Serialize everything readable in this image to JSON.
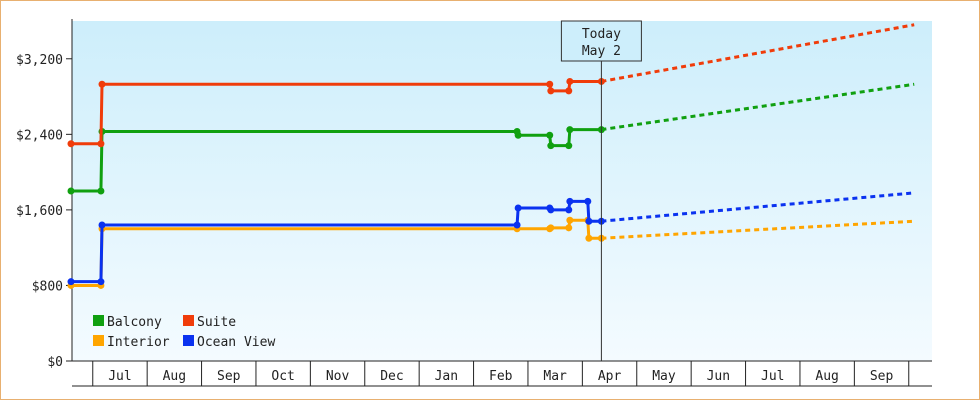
{
  "chart_data": {
    "type": "line",
    "title": "",
    "xlabel": "",
    "ylabel": "",
    "ylim": [
      0,
      3600
    ],
    "y_ticks": [
      0,
      800,
      1600,
      2400,
      3200
    ],
    "y_tick_labels": [
      "$0",
      "$800",
      "$1,600",
      "$2,400",
      "$3,200"
    ],
    "x_months": [
      "Jul",
      "Aug",
      "Sep",
      "Oct",
      "Nov",
      "Dec",
      "Jan",
      "Feb",
      "Mar",
      "Apr",
      "May",
      "Jun",
      "Jul",
      "Aug",
      "Sep"
    ],
    "today_label": [
      "Today",
      "May 2"
    ],
    "legend_position": "bottom-left",
    "grid": false,
    "series": [
      {
        "name": "Balcony",
        "color": "#10a010",
        "values": [
          [
            0.0,
            1800
          ],
          [
            0.55,
            1800
          ],
          [
            0.57,
            2430
          ],
          [
            8.2,
            2430
          ],
          [
            8.22,
            2390
          ],
          [
            8.8,
            2390
          ],
          [
            8.82,
            2280
          ],
          [
            9.15,
            2280
          ],
          [
            9.17,
            2450
          ],
          [
            9.75,
            2450
          ]
        ],
        "projection": [
          [
            9.75,
            2450
          ],
          [
            15.5,
            2930
          ]
        ]
      },
      {
        "name": "Suite",
        "color": "#f03c0a",
        "values": [
          [
            0.0,
            2300
          ],
          [
            0.55,
            2300
          ],
          [
            0.57,
            2930
          ],
          [
            8.8,
            2930
          ],
          [
            8.82,
            2860
          ],
          [
            9.15,
            2860
          ],
          [
            9.17,
            2960
          ],
          [
            9.75,
            2960
          ]
        ],
        "projection": [
          [
            9.75,
            2960
          ],
          [
            15.5,
            3560
          ]
        ]
      },
      {
        "name": "Interior",
        "color": "#ffa500",
        "values": [
          [
            0.0,
            800
          ],
          [
            0.55,
            800
          ],
          [
            0.57,
            1400
          ],
          [
            8.2,
            1400
          ],
          [
            8.8,
            1400
          ],
          [
            8.82,
            1410
          ],
          [
            9.15,
            1410
          ],
          [
            9.17,
            1490
          ],
          [
            9.5,
            1490
          ],
          [
            9.52,
            1300
          ],
          [
            9.75,
            1300
          ]
        ],
        "projection": [
          [
            9.75,
            1300
          ],
          [
            15.5,
            1480
          ]
        ]
      },
      {
        "name": "Ocean View",
        "color": "#0a32f0",
        "values": [
          [
            0.0,
            840
          ],
          [
            0.55,
            840
          ],
          [
            0.57,
            1440
          ],
          [
            8.2,
            1440
          ],
          [
            8.22,
            1620
          ],
          [
            8.8,
            1620
          ],
          [
            8.82,
            1600
          ],
          [
            9.15,
            1600
          ],
          [
            9.17,
            1690
          ],
          [
            9.5,
            1690
          ],
          [
            9.52,
            1480
          ],
          [
            9.75,
            1480
          ]
        ],
        "projection": [
          [
            9.75,
            1480
          ],
          [
            15.5,
            1780
          ]
        ]
      }
    ]
  }
}
